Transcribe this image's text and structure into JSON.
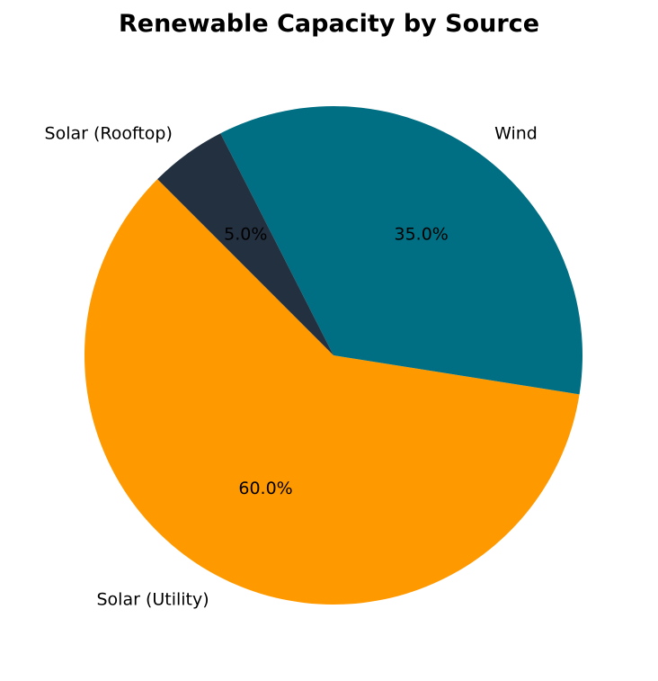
{
  "chart_data": {
    "type": "pie",
    "title": "Renewable Capacity by Source",
    "categories": [
      "Solar (Utility)",
      "Wind",
      "Solar (Rooftop)"
    ],
    "values": [
      60.0,
      35.0,
      5.0
    ],
    "percent_labels": [
      "60.0%",
      "35.0%",
      "5.0%"
    ],
    "colors": [
      "#ff9900",
      "#006f83",
      "#233040"
    ],
    "start_angle_deg": 135,
    "direction": "counterclockwise",
    "legend": "none"
  }
}
